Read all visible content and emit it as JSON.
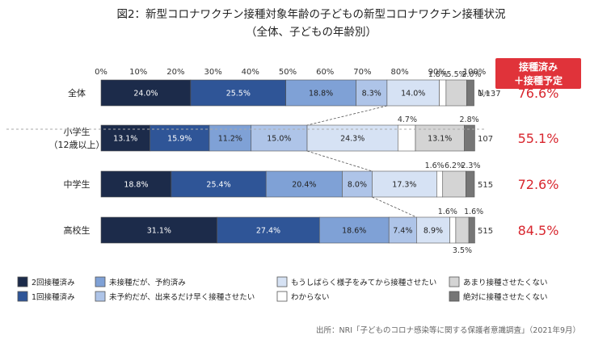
{
  "title": "図2：新型コロナワクチン接種対象年齢の子どもの新型コロナワクチン接種状況",
  "subtitle": "（全体、子どもの年齢別）",
  "source": "出所：NRI「子どものコロナ感染等に関する保護者意識調査」（2021年9月）",
  "n_header": "N=",
  "badge": {
    "line1": "接種済み",
    "line2": "＋接種予定",
    "color": "#e0333a"
  },
  "legend": [
    "2回接種済み",
    "1回接種済み",
    "未接種だが、予約済み",
    "未予約だが、出来るだけ早く接種させたい",
    "もうしばらく様子をみてから接種させたい",
    "わからない",
    "あまり接種させたくない",
    "絶対に接種させたくない"
  ],
  "chart_data": {
    "type": "bar",
    "orientation": "horizontal",
    "stacked": true,
    "xlim": [
      0,
      100
    ],
    "x_ticks": [
      "0%",
      "10%",
      "20%",
      "30%",
      "40%",
      "50%",
      "60%",
      "70%",
      "80%",
      "90%",
      "100%"
    ],
    "categories": [
      {
        "label": [
          "全体"
        ],
        "n": "1,137",
        "rate": "76.6%"
      },
      {
        "label": [
          "小学生",
          "（12歳以上）"
        ],
        "n": "107",
        "rate": "55.1%"
      },
      {
        "label": [
          "中学生"
        ],
        "n": "515",
        "rate": "72.6%"
      },
      {
        "label": [
          "高校生"
        ],
        "n": "515",
        "rate": "84.5%"
      }
    ],
    "series": [
      {
        "name": "2回接種済み",
        "color": "#1c2b4a",
        "text_color": "#ffffff",
        "values": [
          24.0,
          13.1,
          18.8,
          31.1
        ]
      },
      {
        "name": "1回接種済み",
        "color": "#2f5597",
        "text_color": "#ffffff",
        "values": [
          25.5,
          15.9,
          25.4,
          27.4
        ]
      },
      {
        "name": "未接種だが、予約済み",
        "color": "#7fa1d6",
        "text_color": "#222222",
        "values": [
          18.8,
          11.2,
          20.4,
          18.6
        ]
      },
      {
        "name": "未予約だが、出来るだけ早く接種させたい",
        "color": "#aec4e8",
        "text_color": "#222222",
        "values": [
          8.3,
          15.0,
          8.0,
          7.4
        ]
      },
      {
        "name": "もうしばらく様子をみてから接種させたい",
        "color": "#d6e2f4",
        "text_color": "#222222",
        "values": [
          14.0,
          24.3,
          17.3,
          8.9
        ]
      },
      {
        "name": "わからない",
        "color": "#ffffff",
        "text_color": "#222222",
        "values": [
          1.8,
          4.7,
          1.6,
          1.6
        ]
      },
      {
        "name": "あまり接種させたくない",
        "color": "#d4d4d4",
        "text_color": "#222222",
        "values": [
          5.5,
          13.1,
          6.2,
          3.5
        ]
      },
      {
        "name": "絶対に接種させたくない",
        "color": "#767676",
        "text_color": "#222222",
        "values": [
          2.0,
          2.8,
          2.3,
          1.6
        ]
      }
    ]
  }
}
